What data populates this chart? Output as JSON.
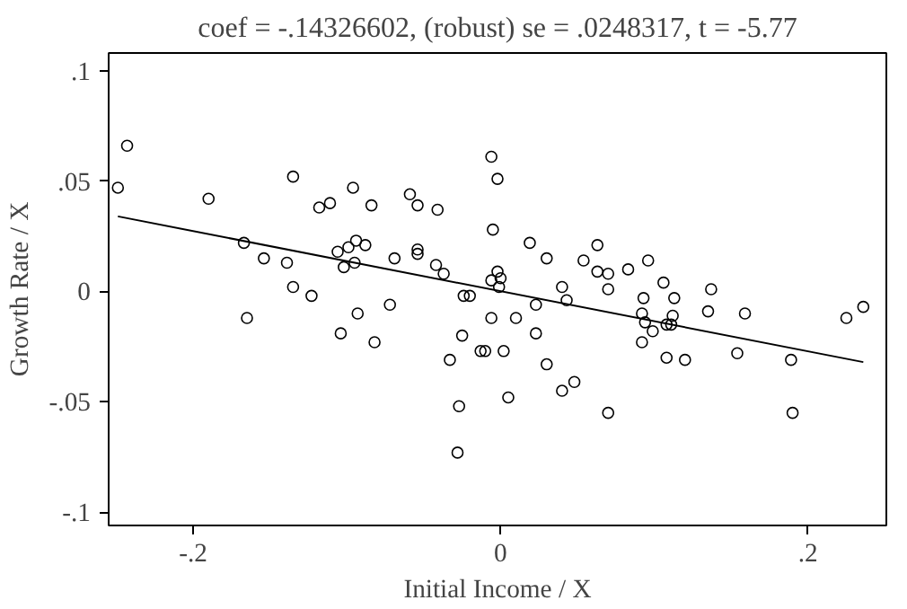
{
  "chart_data": {
    "type": "scatter",
    "title": "coef = -.14326602, (robust) se = .0248317, t = -5.77",
    "xlabel": "Initial Income / X",
    "ylabel": "Growth Rate / X",
    "xlim": [
      -0.255,
      0.251
    ],
    "ylim": [
      -0.106,
      0.108
    ],
    "xticks": [
      {
        "value": -0.2,
        "label": "-.2"
      },
      {
        "value": 0,
        "label": "0"
      },
      {
        "value": 0.2,
        "label": ".2"
      }
    ],
    "yticks": [
      {
        "value": -0.1,
        "label": "-.1"
      },
      {
        "value": -0.05,
        "label": "-.05"
      },
      {
        "value": 0,
        "label": "0"
      },
      {
        "value": 0.05,
        "label": ".05"
      },
      {
        "value": 0.1,
        "label": ".1"
      }
    ],
    "grid": false,
    "marker": "circle",
    "series": [
      {
        "color": "#000000",
        "x": [
          -0.249,
          -0.243,
          -0.19,
          -0.167,
          -0.165,
          -0.154,
          -0.139,
          -0.135,
          -0.135,
          -0.123,
          -0.118,
          -0.111,
          -0.106,
          -0.104,
          -0.102,
          -0.099,
          -0.096,
          -0.095,
          -0.094,
          -0.093,
          -0.088,
          -0.084,
          -0.082,
          -0.072,
          -0.069,
          -0.059,
          -0.054,
          -0.054,
          -0.054,
          -0.042,
          -0.041,
          -0.037,
          -0.033,
          -0.028,
          -0.027,
          -0.025,
          -0.024,
          -0.02,
          -0.013,
          -0.01,
          -0.006,
          -0.006,
          -0.006,
          -0.002,
          -0.005,
          -0.002,
          0.0,
          -0.001,
          0.002,
          0.005,
          0.01,
          0.019,
          0.023,
          0.023,
          0.03,
          0.03,
          0.04,
          0.04,
          0.043,
          0.048,
          0.054,
          0.063,
          0.063,
          0.07,
          0.07,
          0.07,
          0.083,
          0.092,
          0.092,
          0.093,
          0.094,
          0.096,
          0.099,
          0.106,
          0.108,
          0.108,
          0.111,
          0.112,
          0.113,
          0.12,
          0.135,
          0.137,
          0.154,
          0.159,
          0.189,
          0.19,
          0.225,
          0.236
        ],
        "values": [
          0.047,
          0.066,
          0.042,
          0.022,
          -0.012,
          0.015,
          0.013,
          0.052,
          0.002,
          -0.002,
          0.038,
          0.04,
          0.018,
          -0.019,
          0.011,
          0.02,
          0.047,
          0.013,
          0.023,
          -0.01,
          0.021,
          0.039,
          -0.023,
          -0.006,
          0.015,
          0.044,
          0.039,
          0.019,
          0.017,
          0.012,
          0.037,
          0.008,
          -0.031,
          -0.073,
          -0.052,
          -0.02,
          -0.002,
          -0.002,
          -0.027,
          -0.027,
          0.061,
          0.005,
          -0.012,
          0.051,
          0.028,
          0.009,
          0.006,
          0.002,
          -0.027,
          -0.048,
          -0.012,
          0.022,
          -0.006,
          -0.019,
          0.015,
          -0.033,
          0.002,
          -0.045,
          -0.004,
          -0.041,
          0.014,
          0.021,
          0.009,
          0.008,
          0.001,
          -0.055,
          0.01,
          -0.01,
          -0.023,
          -0.003,
          -0.014,
          0.014,
          -0.018,
          0.004,
          -0.015,
          -0.03,
          -0.015,
          -0.011,
          -0.003,
          -0.031,
          -0.009,
          0.001,
          -0.028,
          -0.01,
          -0.031,
          -0.055,
          -0.012,
          -0.007
        ]
      },
      {
        "type": "line",
        "marker": "none",
        "color": "#000000",
        "x": [
          -0.249,
          0.236
        ],
        "values": [
          0.034,
          -0.032
        ]
      }
    ]
  }
}
